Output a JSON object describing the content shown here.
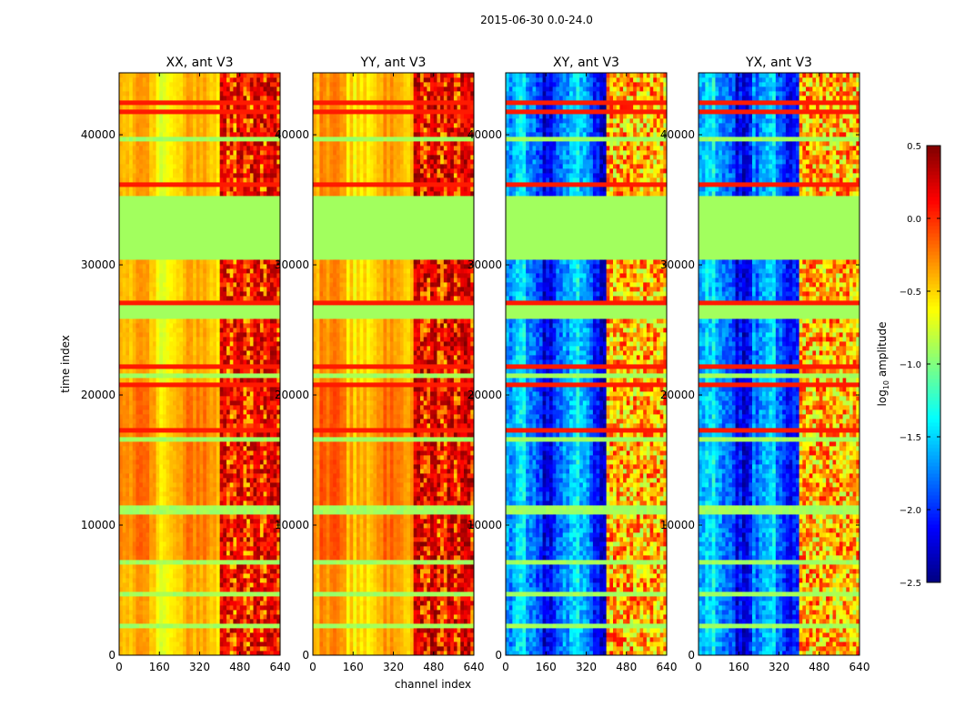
{
  "chart_data": {
    "type": "heatmap",
    "suptitle": "2015-06-30 0.0-24.0",
    "xlabel": "channel index",
    "ylabel": "time index",
    "xlim": [
      0,
      640
    ],
    "ylim": [
      0,
      44760
    ],
    "xticks": [
      "0",
      "160",
      "320",
      "480",
      "640"
    ],
    "yticks": [
      "0",
      "10000",
      "20000",
      "30000",
      "40000"
    ],
    "ytick_values": [
      0,
      10000,
      20000,
      30000,
      40000
    ],
    "xtick_values": [
      0,
      160,
      320,
      480,
      640
    ],
    "grid": false,
    "panels": [
      {
        "title": "XX, ant V3",
        "kind": "auto",
        "base_level": -0.5,
        "high_channel_level": 0.1
      },
      {
        "title": "YY, ant V3",
        "kind": "auto",
        "base_level": -0.45,
        "high_channel_level": 0.15
      },
      {
        "title": "XY, ant V3",
        "kind": "cross",
        "base_level": -1.8,
        "high_channel_level": -0.4
      },
      {
        "title": "YX, ant V3",
        "kind": "cross",
        "base_level": -1.8,
        "high_channel_level": -0.4
      }
    ],
    "high_channel_start": 400,
    "flagged_time_ranges": [
      [
        30300,
        35300
      ],
      [
        25950,
        27100
      ]
    ],
    "flagged_level": -0.9,
    "colorbar": {
      "label": "log10 amplitude",
      "range": [
        -2.5,
        0.5
      ],
      "ticks": [
        "0.5",
        "0.0",
        "−0.5",
        "−1.0",
        "−1.5",
        "−2.0",
        "−2.5"
      ],
      "tick_values": [
        0.5,
        0.0,
        -0.5,
        -1.0,
        -1.5,
        -2.0,
        -2.5
      ],
      "colormap": "jet"
    }
  }
}
